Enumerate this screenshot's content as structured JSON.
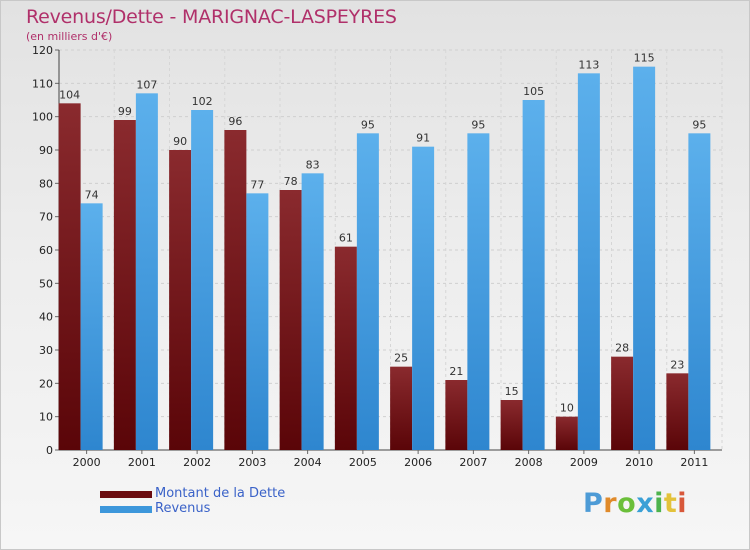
{
  "header": {
    "title": "Revenus/Dette - MARIGNAC-LASPEYRES",
    "subtitle": "(en milliers d'€)"
  },
  "legend": {
    "items": [
      {
        "label": "Montant de la Dette",
        "color": "#6b0c10"
      },
      {
        "label": "Revenus",
        "color": "#3d97db"
      }
    ]
  },
  "logo": {
    "letters": [
      "P",
      "r",
      "o",
      "x",
      "i",
      "t",
      "i"
    ],
    "colors": [
      "#4d9bd6",
      "#e08a2a",
      "#6bbf3a",
      "#3aa0d6",
      "#4db34d",
      "#e3c23a",
      "#d8583a"
    ]
  },
  "chart_data": {
    "type": "bar",
    "categories": [
      "2000",
      "2001",
      "2002",
      "2003",
      "2004",
      "2005",
      "2006",
      "2007",
      "2008",
      "2009",
      "2010",
      "2011"
    ],
    "series": [
      {
        "name": "Montant de la Dette",
        "values": [
          104,
          99,
          90,
          96,
          78,
          61,
          25,
          21,
          15,
          10,
          28,
          23
        ],
        "color": "#6b0c10"
      },
      {
        "name": "Revenus",
        "values": [
          74,
          107,
          102,
          77,
          83,
          95,
          91,
          95,
          105,
          113,
          115,
          95
        ],
        "color": "#3d97db"
      }
    ],
    "title": "Revenus/Dette - MARIGNAC-LASPEYRES",
    "subtitle": "(en milliers d'€)",
    "ylim": [
      0,
      120
    ],
    "yticks": [
      0,
      10,
      20,
      30,
      40,
      50,
      60,
      70,
      80,
      90,
      100,
      110,
      120
    ],
    "grid": true,
    "legend_position": "bottom-left"
  }
}
